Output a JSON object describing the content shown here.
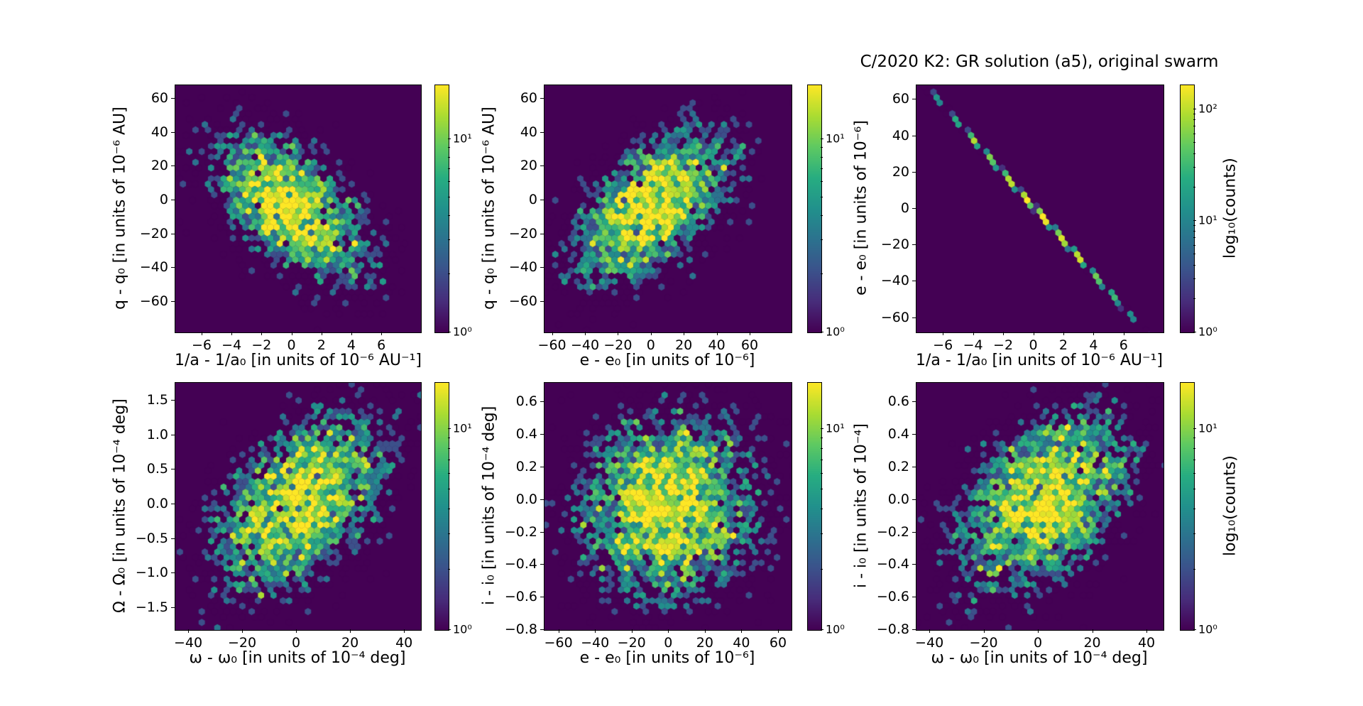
{
  "chart_data": {
    "type": "hexbin",
    "title": "C/2020 K2: GR solution (a5), original swarm",
    "colormap": [
      "#440154",
      "#472d7b",
      "#3b528b",
      "#2c728e",
      "#21918c",
      "#27ad81",
      "#5ec962",
      "#aadc32",
      "#fde725"
    ],
    "background_bin_color": "#440154",
    "legend_position": "right-colorbars",
    "grid": false,
    "panels": [
      {
        "id": "q-vs-inva",
        "xlabel": "1/a - 1/a₀ [in units of 10⁻⁶ AU⁻¹]",
        "ylabel": "q - q₀ [in units of 10⁻⁶ AU]",
        "xlim": [
          -7.8,
          8.6
        ],
        "ylim": [
          -78,
          68
        ],
        "xtick_values": [
          -6,
          -4,
          -2,
          0,
          2,
          4,
          6
        ],
        "xtick_labels": [
          "−6",
          "−4",
          "−2",
          "0",
          "2",
          "4",
          "6"
        ],
        "ytick_values": [
          -60,
          -40,
          -20,
          0,
          20,
          40,
          60
        ],
        "ytick_labels": [
          "−60",
          "−40",
          "−20",
          "0",
          "20",
          "40",
          "60"
        ],
        "colorbar": {
          "cmax": 19,
          "tick_values": [
            1,
            10
          ],
          "tick_labels": [
            "10⁰",
            "10¹"
          ]
        },
        "dist": {
          "cx": 0,
          "cy": -4,
          "sx": 2.4,
          "sy": 21,
          "rho": -0.55,
          "amp": 19,
          "disp": 0.55,
          "seed": 11
        }
      },
      {
        "id": "q-vs-e",
        "xlabel": "e - e₀ [in units of 10⁻⁶]",
        "ylabel": "q - q₀ [in units of 10⁻⁶ AU]",
        "xlim": [
          -65,
          85
        ],
        "ylim": [
          -78,
          68
        ],
        "xtick_values": [
          -60,
          -40,
          -20,
          0,
          20,
          40,
          60
        ],
        "xtick_labels": [
          "−60",
          "−40",
          "−20",
          "0",
          "20",
          "40",
          "60"
        ],
        "ytick_values": [
          -60,
          -40,
          -20,
          0,
          20,
          40,
          60
        ],
        "ytick_labels": [
          "−60",
          "−40",
          "−20",
          "0",
          "20",
          "40",
          "60"
        ],
        "colorbar": {
          "cmax": 19,
          "tick_values": [
            1,
            10
          ],
          "tick_labels": [
            "10⁰",
            "10¹"
          ]
        },
        "dist": {
          "cx": 0,
          "cy": -4,
          "sx": 22,
          "sy": 21,
          "rho": 0.55,
          "amp": 19,
          "disp": 0.55,
          "seed": 22
        }
      },
      {
        "id": "e-vs-inva",
        "xlabel": "1/a - 1/a₀ [in units of 10⁻⁶ AU⁻¹]",
        "ylabel": "e - e₀ [in units of 10⁻⁶]",
        "xlim": [
          -7.8,
          8.6
        ],
        "ylim": [
          -68,
          68
        ],
        "xtick_values": [
          -6,
          -4,
          -2,
          0,
          2,
          4,
          6
        ],
        "xtick_labels": [
          "−6",
          "−4",
          "−2",
          "0",
          "2",
          "4",
          "6"
        ],
        "ytick_values": [
          -60,
          -40,
          -20,
          0,
          20,
          40,
          60
        ],
        "ytick_labels": [
          "−60",
          "−40",
          "−20",
          "0",
          "20",
          "40",
          "60"
        ],
        "colorbar": {
          "cmax": 165,
          "tick_values": [
            1,
            10,
            100
          ],
          "tick_labels": [
            "10⁰",
            "10¹",
            "10²"
          ],
          "label": "log₁₀(counts)"
        },
        "dist": {
          "cx": 0.3,
          "cy": -2,
          "sx": 2.75,
          "sy": 25.5,
          "rho": -0.9995,
          "amp": 175,
          "disp": 0.18,
          "seed": 33
        }
      },
      {
        "id": "Omega-vs-omega",
        "xlabel": "ω - ω₀ [in units of 10⁻⁴ deg]",
        "ylabel": "Ω - Ω₀ [in units of 10⁻⁴ deg]",
        "xlim": [
          -45,
          46
        ],
        "ylim": [
          -1.82,
          1.76
        ],
        "xtick_values": [
          -40,
          -20,
          0,
          20,
          40
        ],
        "xtick_labels": [
          "−40",
          "−20",
          "0",
          "20",
          "40"
        ],
        "ytick_values": [
          -1.5,
          -1.0,
          -0.5,
          0.0,
          0.5,
          1.0,
          1.5
        ],
        "ytick_labels": [
          "−1.5",
          "−1.0",
          "−0.5",
          "0.0",
          "0.5",
          "1.0",
          "1.5"
        ],
        "colorbar": {
          "cmax": 17,
          "tick_values": [
            1,
            10
          ],
          "tick_labels": [
            "10⁰",
            "10¹"
          ]
        },
        "dist": {
          "cx": 1.5,
          "cy": 0,
          "sx": 15,
          "sy": 0.6,
          "rho": 0.5,
          "amp": 17,
          "disp": 0.55,
          "seed": 44
        }
      },
      {
        "id": "i-vs-e",
        "xlabel": "e - e₀ [in units of 10⁻⁶]",
        "ylabel": "i - i₀ [in units of 10⁻⁴ deg]",
        "xlim": [
          -68,
          67
        ],
        "ylim": [
          -0.8,
          0.72
        ],
        "xtick_values": [
          -60,
          -40,
          -20,
          0,
          20,
          40,
          60
        ],
        "xtick_labels": [
          "−60",
          "−40",
          "−20",
          "0",
          "20",
          "40",
          "60"
        ],
        "ytick_values": [
          -0.8,
          -0.6,
          -0.4,
          -0.2,
          0.0,
          0.2,
          0.4,
          0.6
        ],
        "ytick_labels": [
          "−0.8",
          "−0.6",
          "−0.4",
          "−0.2",
          "0.0",
          "0.2",
          "0.4",
          "0.6"
        ],
        "colorbar": {
          "cmax": 17,
          "tick_values": [
            1,
            10
          ],
          "tick_labels": [
            "10⁰",
            "10¹"
          ]
        },
        "dist": {
          "cx": 0,
          "cy": -0.04,
          "sx": 22,
          "sy": 0.26,
          "rho": 0.05,
          "amp": 17,
          "disp": 0.55,
          "seed": 55
        }
      },
      {
        "id": "i-vs-omega",
        "xlabel": "ω - ω₀ [in units of 10⁻⁴ deg]",
        "ylabel": "i - i₀ [in units of 10⁻⁴]",
        "xlim": [
          -45,
          46
        ],
        "ylim": [
          -0.8,
          0.72
        ],
        "xtick_values": [
          -40,
          -20,
          0,
          20,
          40
        ],
        "xtick_labels": [
          "−40",
          "−20",
          "0",
          "20",
          "40"
        ],
        "ytick_values": [
          -0.8,
          -0.6,
          -0.4,
          -0.2,
          0.0,
          0.2,
          0.4,
          0.6
        ],
        "ytick_labels": [
          "−0.8",
          "−0.6",
          "−0.4",
          "−0.2",
          "0.0",
          "0.2",
          "0.4",
          "0.6"
        ],
        "colorbar": {
          "cmax": 17,
          "tick_values": [
            1,
            10
          ],
          "tick_labels": [
            "10⁰",
            "10¹"
          ],
          "label": "log₁₀(counts)"
        },
        "dist": {
          "cx": 2,
          "cy": 0,
          "sx": 15,
          "sy": 0.26,
          "rho": 0.45,
          "amp": 17,
          "disp": 0.55,
          "seed": 66
        }
      }
    ]
  }
}
